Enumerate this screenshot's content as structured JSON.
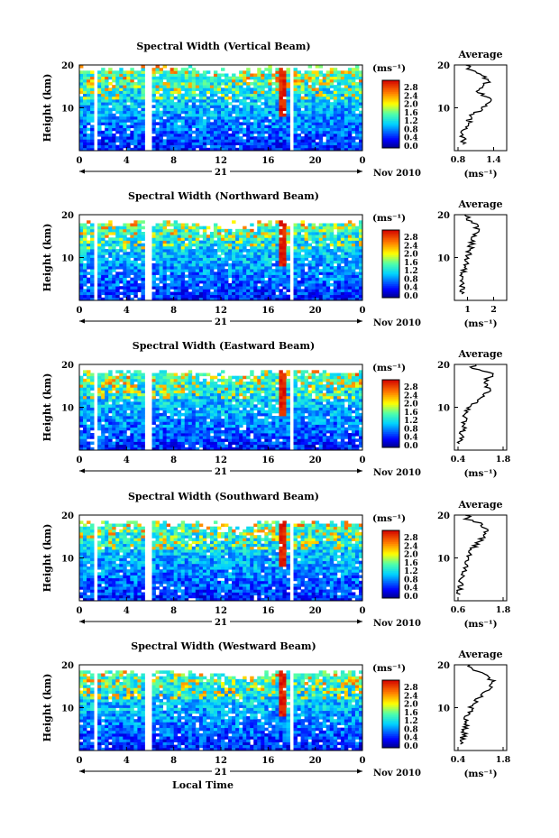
{
  "figure": {
    "xlabel": "Local Time",
    "date_label": "Nov 2010",
    "day_label": "21",
    "units_label": "(ms⁻¹)",
    "avg_title": "Average",
    "avg_xlabel": "(ms⁻¹)",
    "colorbar_ticks": [
      "2.8",
      "2.4",
      "2.0",
      "1.6",
      "1.2",
      "0.8",
      "0.4",
      "0.0"
    ]
  },
  "chart_data": [
    {
      "type": "heatmap",
      "title": "Spectral Width (Vertical Beam)",
      "xlabel": "Local Time",
      "ylabel": "Height (km)",
      "x_ticks": [
        "0",
        "4",
        "8",
        "12",
        "16",
        "20",
        "0"
      ],
      "y_ticks": [
        "20",
        "10"
      ],
      "xlim": [
        0,
        24
      ],
      "ylim": [
        0,
        20
      ],
      "data_gaps_hours": [
        [
          1.2,
          1.5
        ],
        [
          5.6,
          6.0
        ],
        [
          17.7,
          18.3
        ]
      ],
      "colorbar": {
        "label": "(ms⁻¹)",
        "range": [
          0.0,
          3.0
        ]
      },
      "average_profile": {
        "title": "Average",
        "xlabel": "(ms⁻¹)",
        "xlim": [
          0.8,
          1.6
        ],
        "x_ticks": [
          "0.8",
          "1.4"
        ],
        "height_km": [
          2,
          4,
          6,
          8,
          10,
          12,
          14,
          16,
          18,
          19
        ],
        "values": [
          0.95,
          0.9,
          1.0,
          1.05,
          1.25,
          1.35,
          1.15,
          1.3,
          1.2,
          1.0
        ]
      }
    },
    {
      "type": "heatmap",
      "title": "Spectral Width (Northward Beam)",
      "xlabel": "Local Time",
      "ylabel": "Height (km)",
      "x_ticks": [
        "0",
        "4",
        "8",
        "12",
        "16",
        "20",
        "0"
      ],
      "y_ticks": [
        "20",
        "10"
      ],
      "xlim": [
        0,
        24
      ],
      "ylim": [
        0,
        20
      ],
      "data_gaps_hours": [
        [
          1.2,
          1.5
        ],
        [
          5.6,
          6.0
        ],
        [
          17.7,
          18.3
        ]
      ],
      "colorbar": {
        "label": "(ms⁻¹)",
        "range": [
          0.0,
          3.0
        ]
      },
      "average_profile": {
        "title": "Average",
        "xlabel": "(ms⁻¹)",
        "xlim": [
          0.5,
          2.5
        ],
        "x_ticks": [
          "1",
          "2"
        ],
        "height_km": [
          2,
          4,
          6,
          8,
          10,
          12,
          14,
          16,
          18,
          19
        ],
        "values": [
          0.8,
          0.75,
          0.8,
          0.9,
          1.0,
          1.1,
          1.2,
          1.35,
          1.3,
          1.0
        ]
      }
    },
    {
      "type": "heatmap",
      "title": "Spectral Width (Eastward Beam)",
      "xlabel": "Local Time",
      "ylabel": "Height (km)",
      "x_ticks": [
        "0",
        "4",
        "8",
        "12",
        "16",
        "20",
        "0"
      ],
      "y_ticks": [
        "20",
        "10"
      ],
      "xlim": [
        0,
        24
      ],
      "ylim": [
        0,
        20
      ],
      "data_gaps_hours": [
        [
          1.2,
          1.5
        ],
        [
          5.6,
          6.0
        ],
        [
          17.7,
          18.3
        ]
      ],
      "colorbar": {
        "label": "(ms⁻¹)",
        "range": [
          0.0,
          3.0
        ]
      },
      "average_profile": {
        "title": "Average",
        "xlabel": "(ms⁻¹)",
        "xlim": [
          0.4,
          1.8
        ],
        "x_ticks": [
          "0.4",
          "1.8"
        ],
        "height_km": [
          2,
          4,
          6,
          8,
          10,
          12,
          14,
          16,
          18,
          19
        ],
        "values": [
          0.55,
          0.6,
          0.65,
          0.7,
          0.8,
          1.1,
          1.35,
          1.2,
          1.5,
          0.9
        ]
      }
    },
    {
      "type": "heatmap",
      "title": "Spectral Width (Southward Beam)",
      "xlabel": "Local Time",
      "ylabel": "Height (km)",
      "x_ticks": [
        "0",
        "4",
        "8",
        "12",
        "16",
        "20",
        "0"
      ],
      "y_ticks": [
        "20",
        "10"
      ],
      "xlim": [
        0,
        24
      ],
      "ylim": [
        0,
        20
      ],
      "data_gaps_hours": [
        [
          1.2,
          1.5
        ],
        [
          5.6,
          6.0
        ],
        [
          17.7,
          18.3
        ]
      ],
      "colorbar": {
        "label": "(ms⁻¹)",
        "range": [
          0.0,
          3.0
        ]
      },
      "average_profile": {
        "title": "Average",
        "xlabel": "(ms⁻¹)",
        "xlim": [
          0.6,
          1.8
        ],
        "x_ticks": [
          "0.6",
          "1.8"
        ],
        "height_km": [
          2,
          4,
          6,
          8,
          10,
          12,
          14,
          16,
          18,
          19
        ],
        "values": [
          0.7,
          0.75,
          0.8,
          0.85,
          0.9,
          1.0,
          1.2,
          1.35,
          1.25,
          0.9
        ]
      }
    },
    {
      "type": "heatmap",
      "title": "Spectral Width (Westward Beam)",
      "xlabel": "Local Time",
      "ylabel": "Height (km)",
      "x_ticks": [
        "0",
        "4",
        "8",
        "12",
        "16",
        "20",
        "0"
      ],
      "y_ticks": [
        "20",
        "10"
      ],
      "xlim": [
        0,
        24
      ],
      "ylim": [
        0,
        20
      ],
      "data_gaps_hours": [
        [
          1.2,
          1.5
        ],
        [
          5.6,
          6.0
        ],
        [
          17.7,
          18.3
        ]
      ],
      "colorbar": {
        "label": "(ms⁻¹)",
        "range": [
          0.0,
          3.0
        ]
      },
      "average_profile": {
        "title": "Average",
        "xlabel": "(ms⁻¹)",
        "xlim": [
          0.4,
          1.8
        ],
        "x_ticks": [
          "0.4",
          "1.8"
        ],
        "height_km": [
          2,
          4,
          6,
          8,
          10,
          12,
          14,
          16,
          18,
          19
        ],
        "values": [
          0.6,
          0.65,
          0.7,
          0.75,
          0.85,
          1.0,
          1.3,
          1.45,
          1.2,
          0.8
        ]
      }
    }
  ]
}
